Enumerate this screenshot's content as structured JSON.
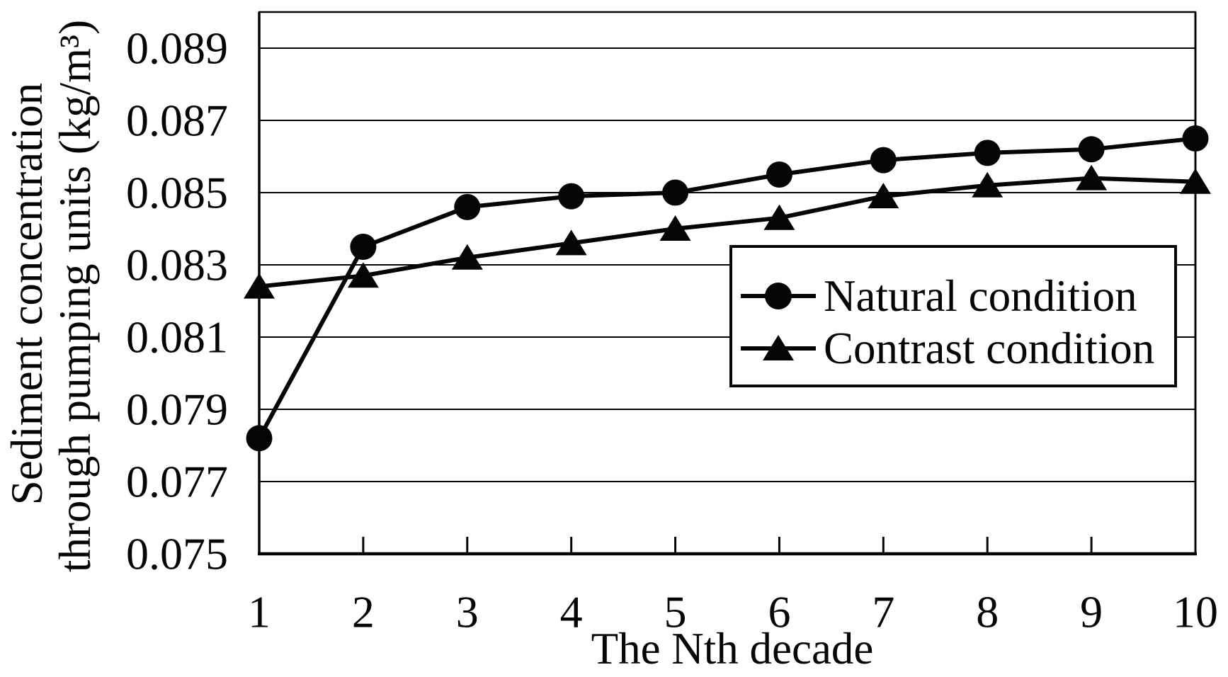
{
  "figure": {
    "background": "#ffffff",
    "ink_color": "#050505"
  },
  "chart_data": {
    "type": "line",
    "title": "",
    "xlabel": "The Nth decade",
    "ylabel_line1": "Sediment concentration",
    "ylabel_line2": "through pumping units (kg/m³)",
    "x": [
      1,
      2,
      3,
      4,
      5,
      6,
      7,
      8,
      9,
      10
    ],
    "series": [
      {
        "name": "Natural condition",
        "marker": "circle",
        "values": [
          0.0782,
          0.0835,
          0.0846,
          0.0849,
          0.085,
          0.0855,
          0.0859,
          0.0861,
          0.0862,
          0.0865
        ]
      },
      {
        "name": "Contrast condition",
        "marker": "triangle",
        "values": [
          0.0824,
          0.0827,
          0.0832,
          0.0836,
          0.084,
          0.0843,
          0.0849,
          0.0852,
          0.0854,
          0.0853
        ]
      }
    ],
    "ylim": [
      0.075,
      0.09
    ],
    "ytick_values": [
      0.075,
      0.077,
      0.079,
      0.081,
      0.083,
      0.085,
      0.087,
      0.089
    ],
    "ytick_decimals": 3,
    "xtick_labels": [
      "1",
      "2",
      "3",
      "4",
      "5",
      "6",
      "7",
      "8",
      "9",
      "10"
    ],
    "grid": "horizontal",
    "legend_position": "inside-right",
    "line_color": "#050505"
  }
}
